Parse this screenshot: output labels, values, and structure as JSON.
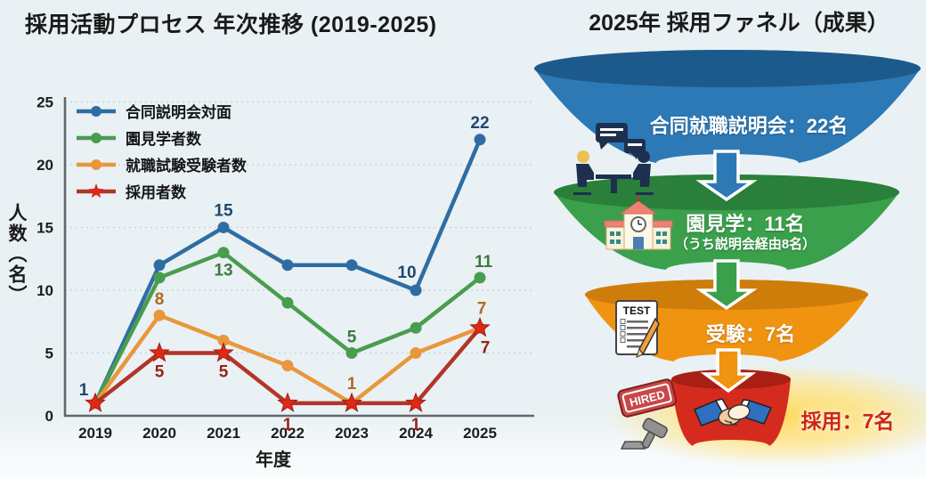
{
  "left_chart": {
    "title": "採用活動プロセス 年次推移 (2019-2025)"
  },
  "chart_data": {
    "type": "line",
    "title": "採用活動プロセス 年次推移 (2019-2025)",
    "xlabel": "年度",
    "ylabel": "人数（名）",
    "categories": [
      "2019",
      "2020",
      "2021",
      "2022",
      "2023",
      "2024",
      "2025"
    ],
    "ylim": [
      0,
      25
    ],
    "yticks": [
      0,
      5,
      10,
      15,
      20,
      25
    ],
    "grid": true,
    "legend_position": "upper-left-inside",
    "series": [
      {
        "name": "合同説明会対面",
        "color": "#2e6da4",
        "marker": "circle",
        "values": [
          1,
          12,
          15,
          12,
          12,
          10,
          22
        ],
        "label_color": "#23466e",
        "labels": [
          {
            "i": 0,
            "text": "1",
            "dx": -13,
            "dy": -9
          },
          {
            "i": 2,
            "text": "15",
            "dx": 0,
            "dy": -13
          },
          {
            "i": 5,
            "text": "10",
            "dx": -10,
            "dy": -14
          },
          {
            "i": 6,
            "text": "22",
            "dx": 0,
            "dy": -13
          }
        ]
      },
      {
        "name": "園見学者数",
        "color": "#4a9c4e",
        "marker": "circle",
        "values": [
          1,
          11,
          13,
          9,
          5,
          7,
          11
        ],
        "label_color": "#3c7a3f",
        "labels": [
          {
            "i": 2,
            "text": "13",
            "dx": 0,
            "dy": 26
          },
          {
            "i": 4,
            "text": "5",
            "dx": 0,
            "dy": -12
          },
          {
            "i": 6,
            "text": "11",
            "dx": 4,
            "dy": -12
          }
        ]
      },
      {
        "name": "就職試験受験者数",
        "color": "#e9973c",
        "marker": "circle",
        "values": [
          1,
          8,
          6,
          4,
          1,
          5,
          7
        ],
        "label_color": "#b06a1f",
        "labels": [
          {
            "i": 1,
            "text": "8",
            "dx": 0,
            "dy": -12
          },
          {
            "i": 4,
            "text": "1",
            "dx": 0,
            "dy": -16
          },
          {
            "i": 6,
            "text": "7",
            "dx": 2,
            "dy": -16
          }
        ]
      },
      {
        "name": "採用者数",
        "color": "#b23527",
        "marker": "star",
        "marker_fill": "#e02817",
        "marker_stroke": "#9c2015",
        "values": [
          1,
          5,
          5,
          1,
          1,
          1,
          7
        ],
        "label_color": "#942518",
        "labels": [
          {
            "i": 1,
            "text": "5",
            "dx": 0,
            "dy": 27
          },
          {
            "i": 2,
            "text": "5",
            "dx": 0,
            "dy": 27
          },
          {
            "i": 3,
            "text": "1",
            "dx": 0,
            "dy": 30
          },
          {
            "i": 5,
            "text": "1",
            "dx": 0,
            "dy": 30
          },
          {
            "i": 6,
            "text": "7",
            "dx": 6,
            "dy": 28
          }
        ]
      }
    ]
  },
  "funnel": {
    "title": "2025年 採用ファネル（成果）",
    "tiers": [
      {
        "label": "合同就職説明会：22名",
        "color": "#2d79b5",
        "rim": "#1d5a8c",
        "icon": "meeting-icon"
      },
      {
        "label": "園見学：11名",
        "sublabel": "（うち説明会経由8名）",
        "color": "#3aa04c",
        "rim": "#2a7f3a",
        "icon": "school-icon"
      },
      {
        "label": "受験：7名",
        "color": "#f09311",
        "rim": "#cf7d0a",
        "icon": "test-icon"
      },
      {
        "label": "採用：7名",
        "color": "#d52b1e",
        "rim": "#a81f14",
        "icon": "handshake-icon",
        "side_icon": "hired-stamp-icon",
        "glow_color": "#ffd957"
      }
    ]
  }
}
